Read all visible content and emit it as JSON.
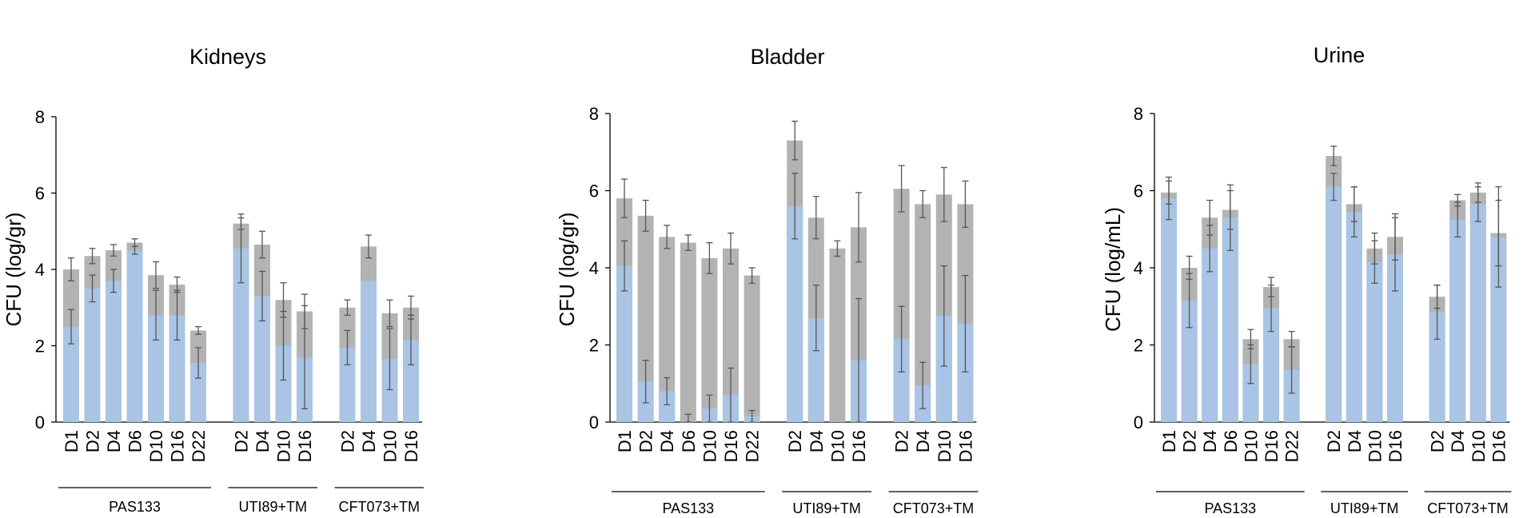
{
  "colors": {
    "grey_bar": "#b3b3b3",
    "blue_bar": "#a9c4e4",
    "axis": "#000000",
    "error": "#555555"
  },
  "chart_data": [
    {
      "type": "bar",
      "title": "Kidneys",
      "ylabel": "CFU (log/gr)",
      "ylim": [
        0,
        8
      ],
      "yticks": [
        "0",
        "2",
        "4",
        "6",
        "8"
      ],
      "groups": [
        {
          "label": "PAS133",
          "categories": [
            "D1",
            "D2",
            "D4",
            "D6",
            "D10",
            "D16",
            "D22"
          ]
        },
        {
          "label": "UTI89+TM",
          "categories": [
            "D2",
            "D4",
            "D10",
            "D16"
          ]
        },
        {
          "label": "CFT073+TM",
          "categories": [
            "D2",
            "D4",
            "D10",
            "D16"
          ]
        }
      ],
      "series": [
        {
          "color": "grey",
          "values": [
            4.0,
            4.35,
            4.5,
            4.7,
            3.85,
            3.6,
            2.4,
            5.2,
            4.65,
            3.2,
            2.9,
            3.0,
            4.6,
            2.85,
            3.0
          ],
          "errors": [
            0.3,
            0.2,
            0.15,
            0.1,
            0.35,
            0.2,
            0.1,
            0.15,
            0.35,
            0.45,
            0.45,
            0.2,
            0.3,
            0.35,
            0.3
          ]
        },
        {
          "color": "blue",
          "values": [
            2.5,
            3.5,
            3.7,
            4.5,
            2.8,
            2.8,
            1.55,
            4.55,
            3.3,
            2.0,
            1.7,
            1.95,
            3.7,
            1.65,
            2.15
          ],
          "errors": [
            0.45,
            0.35,
            0.3,
            0.1,
            0.65,
            0.65,
            0.4,
            0.9,
            0.65,
            0.9,
            1.35,
            0.45,
            0.0,
            0.8,
            0.65
          ]
        }
      ]
    },
    {
      "type": "bar",
      "title": "Bladder",
      "ylabel": "CFU (log/gr)",
      "ylim": [
        0,
        8
      ],
      "yticks": [
        "0",
        "2",
        "4",
        "6",
        "8"
      ],
      "groups": [
        {
          "label": "PAS133",
          "categories": [
            "D1",
            "D2",
            "D4",
            "D6",
            "D10",
            "D16",
            "D22"
          ]
        },
        {
          "label": "UTI89+TM",
          "categories": [
            "D2",
            "D4",
            "D10",
            "D16"
          ]
        },
        {
          "label": "CFT073+TM",
          "categories": [
            "D2",
            "D4",
            "D10",
            "D16"
          ]
        }
      ],
      "series": [
        {
          "color": "grey",
          "values": [
            5.8,
            5.35,
            4.8,
            4.65,
            4.25,
            4.5,
            3.8,
            7.3,
            5.3,
            4.5,
            5.05,
            6.05,
            5.65,
            5.9,
            5.65
          ],
          "errors": [
            0.5,
            0.4,
            0.3,
            0.2,
            0.4,
            0.4,
            0.2,
            0.5,
            0.55,
            0.2,
            0.9,
            0.6,
            0.35,
            0.7,
            0.6
          ]
        },
        {
          "color": "blue",
          "values": [
            4.05,
            1.05,
            0.8,
            0.0,
            0.35,
            0.7,
            0.15,
            5.6,
            2.7,
            0.0,
            1.6,
            2.15,
            0.95,
            2.75,
            2.55
          ],
          "errors": [
            0.65,
            0.55,
            0.35,
            0.2,
            0.35,
            0.7,
            0.15,
            0.85,
            0.85,
            0.0,
            1.6,
            0.85,
            0.6,
            1.3,
            1.25
          ]
        }
      ]
    },
    {
      "type": "bar",
      "title": "Urine",
      "ylabel": "CFU (log/mL)",
      "ylim": [
        0,
        8
      ],
      "yticks": [
        "0",
        "2",
        "4",
        "6",
        "8"
      ],
      "groups": [
        {
          "label": "PAS133",
          "categories": [
            "D1",
            "D2",
            "D4",
            "D6",
            "D10",
            "D16",
            "D22"
          ]
        },
        {
          "label": "UTI89+TM",
          "categories": [
            "D2",
            "D4",
            "D10",
            "D16"
          ]
        },
        {
          "label": "CFT073+TM",
          "categories": [
            "D2",
            "D4",
            "D10",
            "D16"
          ]
        }
      ],
      "series": [
        {
          "color": "grey",
          "values": [
            5.95,
            4.0,
            5.3,
            5.5,
            2.15,
            3.5,
            2.15,
            6.9,
            5.65,
            4.5,
            4.8,
            3.25,
            5.75,
            5.95,
            4.9
          ],
          "errors": [
            0.3,
            0.3,
            0.45,
            0.5,
            0.25,
            0.25,
            0.2,
            0.25,
            0.45,
            0.4,
            0.6,
            0.3,
            0.15,
            0.25,
            0.85
          ]
        },
        {
          "color": "blue",
          "values": [
            5.8,
            3.15,
            4.5,
            5.3,
            1.5,
            2.95,
            1.35,
            6.1,
            5.45,
            4.15,
            4.35,
            2.85,
            5.25,
            5.65,
            4.8
          ],
          "errors": [
            0.55,
            0.7,
            0.6,
            0.85,
            0.5,
            0.6,
            0.6,
            0.35,
            0.65,
            0.55,
            0.95,
            0.7,
            0.45,
            0.45,
            1.3
          ]
        }
      ]
    }
  ]
}
